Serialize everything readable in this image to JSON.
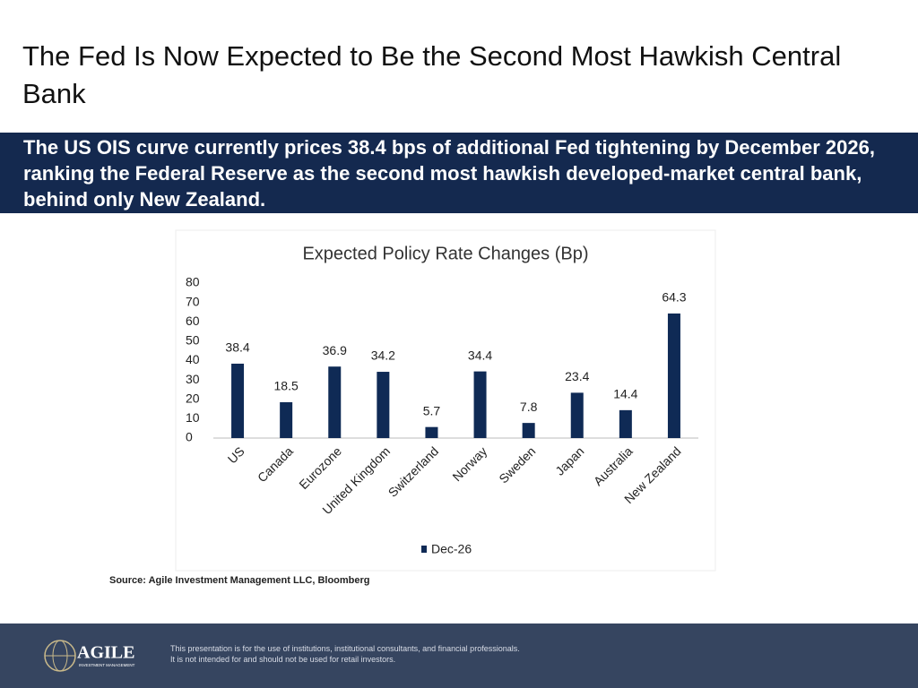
{
  "slide_title": "The Fed Is Now Expected to Be the Second Most Hawkish Central Bank",
  "banner": "The US OIS curve currently prices 38.4 bps of additional Fed tightening by December 2026, ranking the Federal Reserve as the second most hawkish developed-market central bank, behind only New Zealand.",
  "source": "Source: Agile Investment Management LLC, Bloomberg",
  "footer": {
    "logo": "AGILE",
    "logo_tagline": "INVESTMENT MANAGEMENT",
    "disclaimer": [
      "This presentation is for the use of institutions, institutional consultants, and financial professionals.",
      "It is not intended for and should not be used for retail investors."
    ]
  },
  "chart_data": {
    "type": "bar",
    "title": "Expected Policy Rate Changes (Bp)",
    "categories": [
      "US",
      "Canada",
      "Eurozone",
      "United Kingdom",
      "Switzerland",
      "Norway",
      "Sweden",
      "Japan",
      "Australia",
      "New Zealand"
    ],
    "series": [
      {
        "name": "Dec-26",
        "color": "#0f2a55",
        "values": [
          38.4,
          18.5,
          36.9,
          34.2,
          5.7,
          34.4,
          7.8,
          23.4,
          14.4,
          64.3
        ]
      }
    ],
    "ylim": [
      0,
      80
    ],
    "yticks": [
      0,
      10,
      20,
      30,
      40,
      50,
      60,
      70,
      80
    ],
    "grid": false,
    "legend": "bottom"
  }
}
